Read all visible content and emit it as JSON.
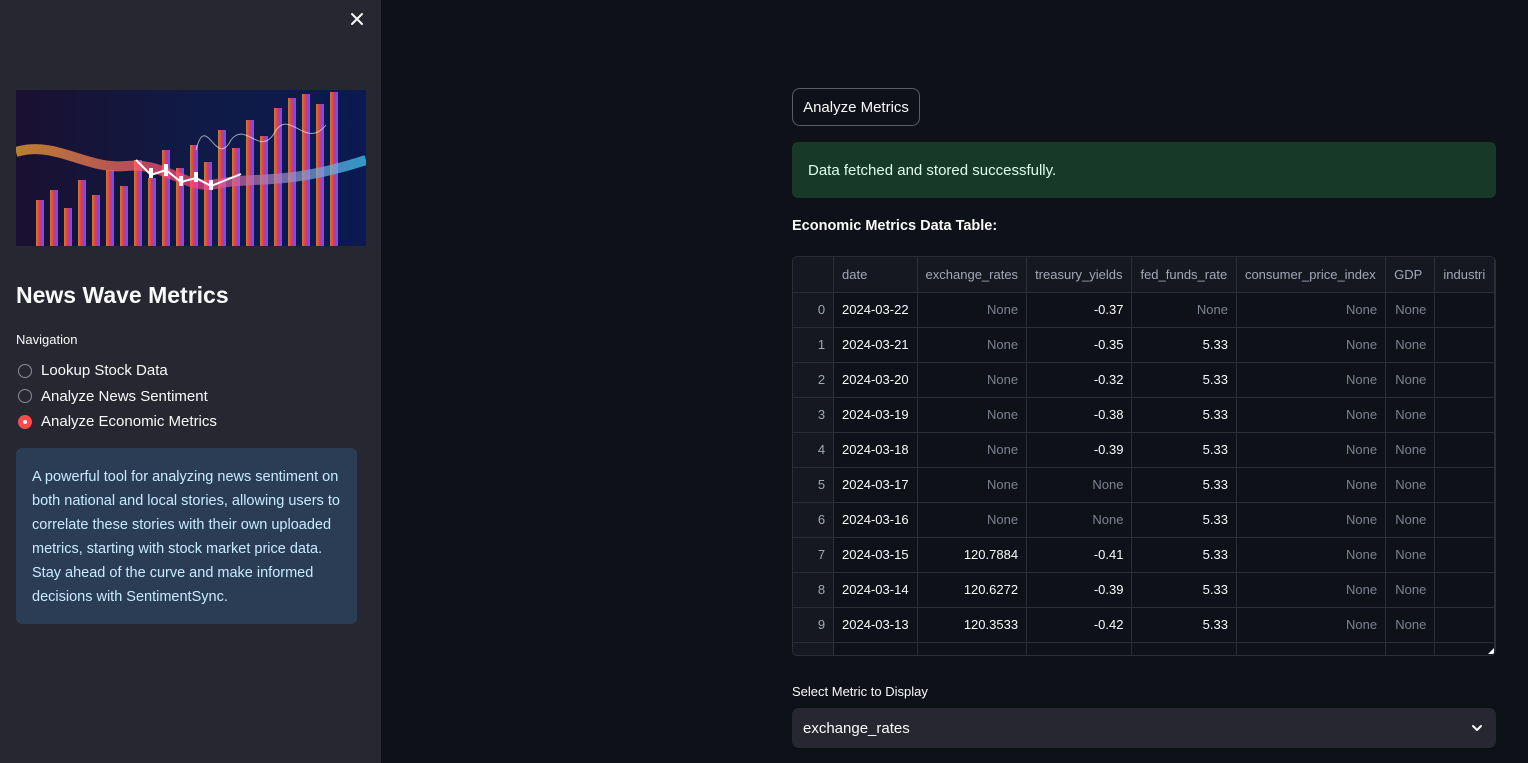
{
  "sidebar": {
    "title": "News Wave Metrics",
    "nav_label": "Navigation",
    "nav_items": [
      {
        "label": "Lookup Stock Data",
        "selected": false
      },
      {
        "label": "Analyze News Sentiment",
        "selected": false
      },
      {
        "label": "Analyze Economic Metrics",
        "selected": true
      }
    ],
    "info_text": "A powerful tool for analyzing news sentiment on both national and local stories, allowing users to correlate these stories with their own uploaded metrics, starting with stock market price data. Stay ahead of the curve and make informed decisions with SentimentSync.",
    "hero_image": "financial-chart-image"
  },
  "main": {
    "analyze_button": "Analyze Metrics",
    "success_message": "Data fetched and stored successfully.",
    "table_title": "Economic Metrics Data Table:",
    "table": {
      "columns": [
        "",
        "date",
        "exchange_rates",
        "treasury_yields",
        "fed_funds_rate",
        "consumer_price_index",
        "GDP",
        "industri"
      ],
      "rows": [
        [
          "0",
          "2024-03-22",
          "None",
          "-0.37",
          "None",
          "None",
          "None",
          ""
        ],
        [
          "1",
          "2024-03-21",
          "None",
          "-0.35",
          "5.33",
          "None",
          "None",
          ""
        ],
        [
          "2",
          "2024-03-20",
          "None",
          "-0.32",
          "5.33",
          "None",
          "None",
          ""
        ],
        [
          "3",
          "2024-03-19",
          "None",
          "-0.38",
          "5.33",
          "None",
          "None",
          ""
        ],
        [
          "4",
          "2024-03-18",
          "None",
          "-0.39",
          "5.33",
          "None",
          "None",
          ""
        ],
        [
          "5",
          "2024-03-17",
          "None",
          "None",
          "5.33",
          "None",
          "None",
          ""
        ],
        [
          "6",
          "2024-03-16",
          "None",
          "None",
          "5.33",
          "None",
          "None",
          ""
        ],
        [
          "7",
          "2024-03-15",
          "120.7884",
          "-0.41",
          "5.33",
          "None",
          "None",
          ""
        ],
        [
          "8",
          "2024-03-14",
          "120.6272",
          "-0.39",
          "5.33",
          "None",
          "None",
          ""
        ],
        [
          "9",
          "2024-03-13",
          "120.3533",
          "-0.42",
          "5.33",
          "None",
          "None",
          ""
        ],
        [
          "",
          "",
          "",
          "",
          "",
          "",
          "",
          ""
        ]
      ]
    },
    "select_label": "Select Metric to Display",
    "select_value": "exchange_rates"
  },
  "icons": {
    "close": "close-icon",
    "chevron": "chevron-down-icon"
  },
  "colors": {
    "sidebar_bg": "#262730",
    "main_bg": "#0e1117",
    "accent": "#ff4b4b",
    "info_bg": "#2a3d55",
    "success_bg": "#173928"
  }
}
